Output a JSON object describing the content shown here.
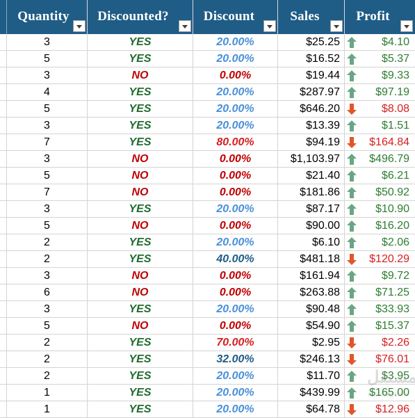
{
  "headers": [
    {
      "key": "quantity",
      "label": "Quantity"
    },
    {
      "key": "discounted",
      "label": "Discounted?"
    },
    {
      "key": "discount",
      "label": "Discount"
    },
    {
      "key": "sales",
      "label": "Sales"
    },
    {
      "key": "profit",
      "label": "Profit"
    }
  ],
  "colors": {
    "header_bg": "#1f5c86",
    "yes": "#1e6b2e",
    "no": "#c00000",
    "pct_low": "#4a90d9",
    "pct_mid": "#1f5c86",
    "pct_high": "#d62020",
    "pct_zero": "#c00000",
    "profit_pos": "#2e7d32",
    "profit_neg": "#d62020",
    "arrow_up": "#6aa585",
    "arrow_down": "#e0562a"
  },
  "rows": [
    {
      "quantity": "3",
      "discounted": "YES",
      "discount": "20.00%",
      "sales": "$25.25",
      "profit": "$4.10",
      "trend": "up"
    },
    {
      "quantity": "5",
      "discounted": "YES",
      "discount": "20.00%",
      "sales": "$16.52",
      "profit": "$5.37",
      "trend": "up"
    },
    {
      "quantity": "3",
      "discounted": "NO",
      "discount": "0.00%",
      "sales": "$19.44",
      "profit": "$9.33",
      "trend": "up"
    },
    {
      "quantity": "4",
      "discounted": "YES",
      "discount": "20.00%",
      "sales": "$287.97",
      "profit": "$97.19",
      "trend": "up"
    },
    {
      "quantity": "5",
      "discounted": "YES",
      "discount": "20.00%",
      "sales": "$646.20",
      "profit": "$8.08",
      "trend": "down"
    },
    {
      "quantity": "3",
      "discounted": "YES",
      "discount": "20.00%",
      "sales": "$13.39",
      "profit": "$1.51",
      "trend": "up"
    },
    {
      "quantity": "7",
      "discounted": "YES",
      "discount": "80.00%",
      "sales": "$94.19",
      "profit": "$164.84",
      "trend": "down"
    },
    {
      "quantity": "3",
      "discounted": "NO",
      "discount": "0.00%",
      "sales": "$1,103.97",
      "profit": "$496.79",
      "trend": "up"
    },
    {
      "quantity": "5",
      "discounted": "NO",
      "discount": "0.00%",
      "sales": "$21.40",
      "profit": "$6.21",
      "trend": "up"
    },
    {
      "quantity": "7",
      "discounted": "NO",
      "discount": "0.00%",
      "sales": "$181.86",
      "profit": "$50.92",
      "trend": "up"
    },
    {
      "quantity": "3",
      "discounted": "YES",
      "discount": "20.00%",
      "sales": "$87.17",
      "profit": "$10.90",
      "trend": "up"
    },
    {
      "quantity": "5",
      "discounted": "NO",
      "discount": "0.00%",
      "sales": "$90.00",
      "profit": "$16.20",
      "trend": "up"
    },
    {
      "quantity": "2",
      "discounted": "YES",
      "discount": "20.00%",
      "sales": "$6.10",
      "profit": "$2.06",
      "trend": "up"
    },
    {
      "quantity": "2",
      "discounted": "YES",
      "discount": "40.00%",
      "sales": "$481.18",
      "profit": "$120.29",
      "trend": "down"
    },
    {
      "quantity": "3",
      "discounted": "NO",
      "discount": "0.00%",
      "sales": "$161.94",
      "profit": "$9.72",
      "trend": "up"
    },
    {
      "quantity": "6",
      "discounted": "NO",
      "discount": "0.00%",
      "sales": "$263.88",
      "profit": "$71.25",
      "trend": "up"
    },
    {
      "quantity": "3",
      "discounted": "YES",
      "discount": "20.00%",
      "sales": "$90.48",
      "profit": "$33.93",
      "trend": "up"
    },
    {
      "quantity": "5",
      "discounted": "NO",
      "discount": "0.00%",
      "sales": "$54.90",
      "profit": "$15.37",
      "trend": "up"
    },
    {
      "quantity": "2",
      "discounted": "YES",
      "discount": "70.00%",
      "sales": "$2.95",
      "profit": "$2.26",
      "trend": "down"
    },
    {
      "quantity": "2",
      "discounted": "YES",
      "discount": "32.00%",
      "sales": "$246.13",
      "profit": "$76.01",
      "trend": "down"
    },
    {
      "quantity": "2",
      "discounted": "YES",
      "discount": "20.00%",
      "sales": "$11.70",
      "profit": "$3.95",
      "trend": "up"
    },
    {
      "quantity": "1",
      "discounted": "YES",
      "discount": "20.00%",
      "sales": "$439.99",
      "profit": "$165.00",
      "trend": "up"
    },
    {
      "quantity": "1",
      "discounted": "YES",
      "discount": "20.00%",
      "sales": "$64.78",
      "profit": "$12.96",
      "trend": "down"
    }
  ],
  "watermark": {
    "text": "مستقل",
    "sub": "mostaql.com"
  }
}
